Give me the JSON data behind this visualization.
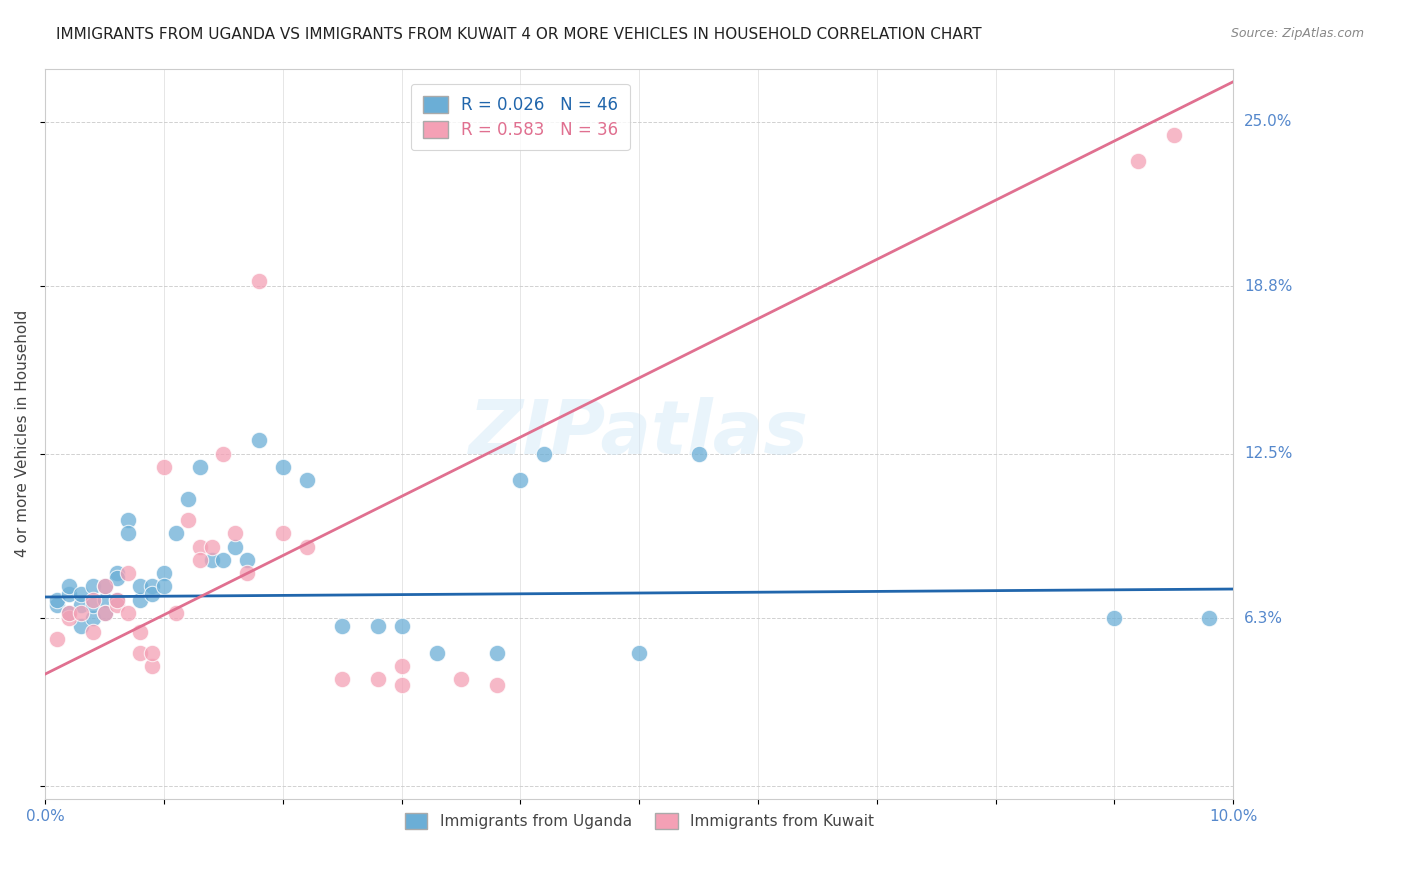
{
  "title": "IMMIGRANTS FROM UGANDA VS IMMIGRANTS FROM KUWAIT 4 OR MORE VEHICLES IN HOUSEHOLD CORRELATION CHART",
  "source": "Source: ZipAtlas.com",
  "ylabel": "4 or more Vehicles in Household",
  "xlim": [
    0.0,
    0.1
  ],
  "ylim": [
    -0.005,
    0.27
  ],
  "ytick_values": [
    0.0,
    0.063,
    0.125,
    0.188,
    0.25
  ],
  "ytick_labels": [
    "",
    "6.3%",
    "12.5%",
    "18.8%",
    "25.0%"
  ],
  "xtick_positions": [
    0.0,
    0.01,
    0.02,
    0.03,
    0.04,
    0.05,
    0.06,
    0.07,
    0.08,
    0.09,
    0.1
  ],
  "xtick_labels": [
    "0.0%",
    "",
    "",
    "",
    "",
    "",
    "",
    "",
    "",
    "",
    "10.0%"
  ],
  "watermark": "ZIPatlas",
  "legend_entries": [
    {
      "label": "R = 0.026   N = 46",
      "color": "#6baed6"
    },
    {
      "label": "R = 0.583   N = 36",
      "color": "#f4a0b5"
    }
  ],
  "uganda_color": "#6baed6",
  "kuwait_color": "#f4a0b5",
  "uganda_line_color": "#2166ac",
  "kuwait_line_color": "#e07090",
  "background_color": "#ffffff",
  "grid_color": "#cccccc",
  "title_fontsize": 11,
  "axis_label_fontsize": 11,
  "tick_label_color_blue": "#5588cc",
  "tick_label_color_right": "#5588cc",
  "uganda_scatter_x": [
    0.001,
    0.001,
    0.002,
    0.002,
    0.002,
    0.003,
    0.003,
    0.003,
    0.004,
    0.004,
    0.004,
    0.005,
    0.005,
    0.005,
    0.006,
    0.006,
    0.006,
    0.007,
    0.007,
    0.008,
    0.008,
    0.009,
    0.009,
    0.01,
    0.01,
    0.011,
    0.012,
    0.013,
    0.014,
    0.015,
    0.016,
    0.017,
    0.018,
    0.02,
    0.022,
    0.025,
    0.028,
    0.03,
    0.033,
    0.038,
    0.04,
    0.042,
    0.05,
    0.055,
    0.09,
    0.098
  ],
  "uganda_scatter_y": [
    0.068,
    0.07,
    0.065,
    0.072,
    0.075,
    0.06,
    0.068,
    0.072,
    0.063,
    0.075,
    0.068,
    0.07,
    0.075,
    0.065,
    0.08,
    0.078,
    0.07,
    0.1,
    0.095,
    0.07,
    0.075,
    0.075,
    0.072,
    0.08,
    0.075,
    0.095,
    0.108,
    0.12,
    0.085,
    0.085,
    0.09,
    0.085,
    0.13,
    0.12,
    0.115,
    0.06,
    0.06,
    0.06,
    0.05,
    0.05,
    0.115,
    0.125,
    0.05,
    0.125,
    0.063,
    0.063
  ],
  "kuwait_scatter_x": [
    0.001,
    0.002,
    0.002,
    0.003,
    0.004,
    0.004,
    0.005,
    0.005,
    0.006,
    0.006,
    0.007,
    0.007,
    0.008,
    0.008,
    0.009,
    0.009,
    0.01,
    0.011,
    0.012,
    0.013,
    0.013,
    0.014,
    0.015,
    0.016,
    0.017,
    0.018,
    0.02,
    0.022,
    0.025,
    0.028,
    0.03,
    0.035,
    0.038,
    0.092,
    0.095,
    0.03
  ],
  "kuwait_scatter_y": [
    0.055,
    0.063,
    0.065,
    0.065,
    0.058,
    0.07,
    0.065,
    0.075,
    0.068,
    0.07,
    0.065,
    0.08,
    0.05,
    0.058,
    0.045,
    0.05,
    0.12,
    0.065,
    0.1,
    0.09,
    0.085,
    0.09,
    0.125,
    0.095,
    0.08,
    0.19,
    0.095,
    0.09,
    0.04,
    0.04,
    0.038,
    0.04,
    0.038,
    0.235,
    0.245,
    0.045
  ],
  "uganda_line_x": [
    0.0,
    0.1
  ],
  "uganda_line_y": [
    0.071,
    0.074
  ],
  "kuwait_line_x": [
    0.0,
    0.1
  ],
  "kuwait_line_y": [
    0.042,
    0.265
  ]
}
